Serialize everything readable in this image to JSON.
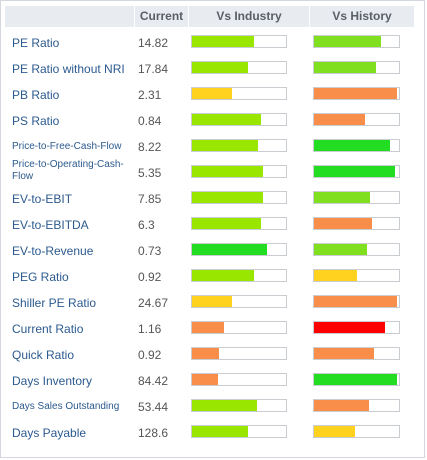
{
  "header": {
    "current_label": "Current",
    "industry_label": "Vs Industry",
    "history_label": "Vs History"
  },
  "rows": [
    {
      "name": "PE Ratio",
      "current": "14.82",
      "industry_fill_pct": 66,
      "industry_color": "#99e600",
      "history_fill_pct": 79,
      "history_color": "#80e020"
    },
    {
      "name": "PE Ratio without NRI",
      "current": "17.84",
      "industry_fill_pct": 60,
      "industry_color": "#99e600",
      "history_fill_pct": 73,
      "history_color": "#80e020"
    },
    {
      "name": "PB Ratio",
      "current": "2.31",
      "industry_fill_pct": 43,
      "industry_color": "#ffd21f",
      "history_fill_pct": 98,
      "history_color": "#f98e4a"
    },
    {
      "name": "PS Ratio",
      "current": "0.84",
      "industry_fill_pct": 73,
      "industry_color": "#99e600",
      "history_fill_pct": 60,
      "history_color": "#f98e4a"
    },
    {
      "name": "Price-to-Free-Cash-Flow",
      "current": "8.22",
      "industry_fill_pct": 70,
      "industry_color": "#99e600",
      "history_fill_pct": 89,
      "history_color": "#22dd22"
    },
    {
      "name": "Price-to-Operating-Cash-Flow",
      "current": "5.35",
      "industry_fill_pct": 76,
      "industry_color": "#99e600",
      "history_fill_pct": 95,
      "history_color": "#22dd22"
    },
    {
      "name": "EV-to-EBIT",
      "current": "7.85",
      "industry_fill_pct": 76,
      "industry_color": "#99e600",
      "history_fill_pct": 66,
      "history_color": "#80e020"
    },
    {
      "name": "EV-to-EBITDA",
      "current": "6.3",
      "industry_fill_pct": 73,
      "industry_color": "#99e600",
      "history_fill_pct": 68,
      "history_color": "#f98e4a"
    },
    {
      "name": "EV-to-Revenue",
      "current": "0.73",
      "industry_fill_pct": 80,
      "industry_color": "#22dd22",
      "history_fill_pct": 62,
      "history_color": "#80e020"
    },
    {
      "name": "PEG Ratio",
      "current": "0.92",
      "industry_fill_pct": 66,
      "industry_color": "#99e600",
      "history_fill_pct": 50,
      "history_color": "#ffd21f"
    },
    {
      "name": "Shiller PE Ratio",
      "current": "24.67",
      "industry_fill_pct": 43,
      "industry_color": "#ffd21f",
      "history_fill_pct": 98,
      "history_color": "#f98e4a"
    },
    {
      "name": "Current Ratio",
      "current": "1.16",
      "industry_fill_pct": 34,
      "industry_color": "#f98e4a",
      "history_fill_pct": 84,
      "history_color": "#ff0000"
    },
    {
      "name": "Quick Ratio",
      "current": "0.92",
      "industry_fill_pct": 29,
      "industry_color": "#f98e4a",
      "history_fill_pct": 71,
      "history_color": "#f98e4a"
    },
    {
      "name": "Days Inventory",
      "current": "84.42",
      "industry_fill_pct": 28,
      "industry_color": "#f98e4a",
      "history_fill_pct": 98,
      "history_color": "#22dd22"
    },
    {
      "name": "Days Sales Outstanding",
      "current": "53.44",
      "industry_fill_pct": 69,
      "industry_color": "#99e600",
      "history_fill_pct": 65,
      "history_color": "#f98e4a"
    },
    {
      "name": "Days Payable",
      "current": "128.6",
      "industry_fill_pct": 60,
      "industry_color": "#99e600",
      "history_fill_pct": 48,
      "history_color": "#ffd21f"
    }
  ]
}
